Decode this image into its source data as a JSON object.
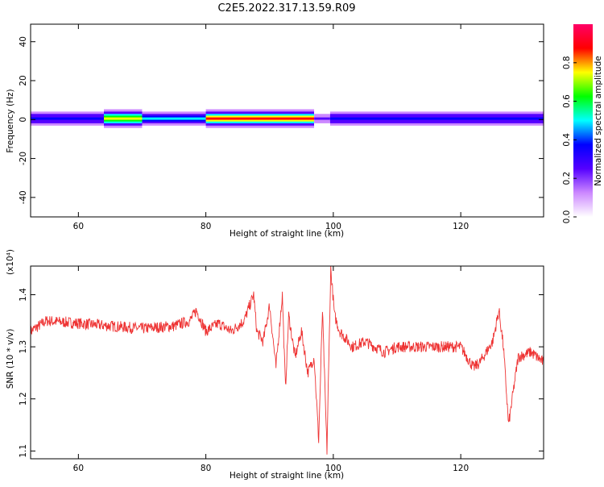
{
  "figure": {
    "title": "C2E5.2022.317.13.59.R09"
  },
  "chart_data": [
    {
      "type": "heatmap",
      "xlabel": "Height of straight line (km)",
      "ylabel": "Frequency (Hz)",
      "xlim": [
        52.5,
        133
      ],
      "ylim": [
        -50,
        49
      ],
      "x_ticks": [
        60,
        80,
        100,
        120
      ],
      "y_ticks": [
        40,
        20,
        0,
        -20,
        -40
      ],
      "band": {
        "center_frequency": 0.5,
        "half_width_hz": 3,
        "segments": [
          {
            "x0": 52.5,
            "x1": 64.0,
            "amplitude": 0.35
          },
          {
            "x0": 64.0,
            "x1": 70.0,
            "amplitude": 0.75
          },
          {
            "x0": 70.0,
            "x1": 80.0,
            "amplitude": 0.45
          },
          {
            "x0": 80.0,
            "x1": 97.0,
            "amplitude": 0.85
          },
          {
            "x0": 97.0,
            "x1": 99.5,
            "amplitude": 0.2
          },
          {
            "x0": 99.5,
            "x1": 133.0,
            "amplitude": 0.35
          }
        ]
      },
      "colorbar": {
        "label": "Normalized spectral amplitude",
        "range": [
          0,
          1
        ],
        "ticks": [
          "0.0",
          "0.2",
          "0.4",
          "0.6",
          "0.8"
        ],
        "colors": [
          "#ffffff",
          "#cc88ff",
          "#5500ff",
          "#0000ff",
          "#00ffff",
          "#00ff00",
          "#ffff00",
          "#ff0000",
          "#ff0066"
        ]
      }
    },
    {
      "type": "line",
      "xlabel": "Height of straight line (km)",
      "ylabel": "SNR (10 * v/v)",
      "y_multiplier": "(x10⁴)",
      "xlim": [
        52.5,
        133
      ],
      "ylim": [
        1.085,
        1.455
      ],
      "x_ticks": [
        60,
        80,
        100,
        120
      ],
      "y_ticks": [
        "1.1",
        "1.2",
        "1.3",
        "1.4"
      ],
      "line_color": "#ee3333",
      "x": [
        52.5,
        55,
        60,
        65,
        70,
        75,
        77.5,
        78.5,
        80,
        82,
        84,
        86,
        87.5,
        88,
        89,
        90,
        91,
        92,
        92.5,
        93,
        94,
        95,
        96,
        97,
        97.7,
        98.3,
        99,
        99.6,
        100.2,
        101,
        103,
        105,
        108,
        110,
        115,
        120,
        122,
        123,
        125,
        126,
        126.7,
        127.5,
        129,
        131,
        133
      ],
      "y": [
        1.33,
        1.35,
        1.345,
        1.34,
        1.335,
        1.34,
        1.35,
        1.37,
        1.33,
        1.345,
        1.33,
        1.35,
        1.4,
        1.33,
        1.31,
        1.38,
        1.26,
        1.4,
        1.22,
        1.36,
        1.28,
        1.33,
        1.25,
        1.28,
        1.12,
        1.37,
        1.1,
        1.45,
        1.36,
        1.33,
        1.3,
        1.31,
        1.29,
        1.3,
        1.3,
        1.3,
        1.26,
        1.27,
        1.31,
        1.37,
        1.3,
        1.15,
        1.28,
        1.29,
        1.27
      ]
    }
  ]
}
